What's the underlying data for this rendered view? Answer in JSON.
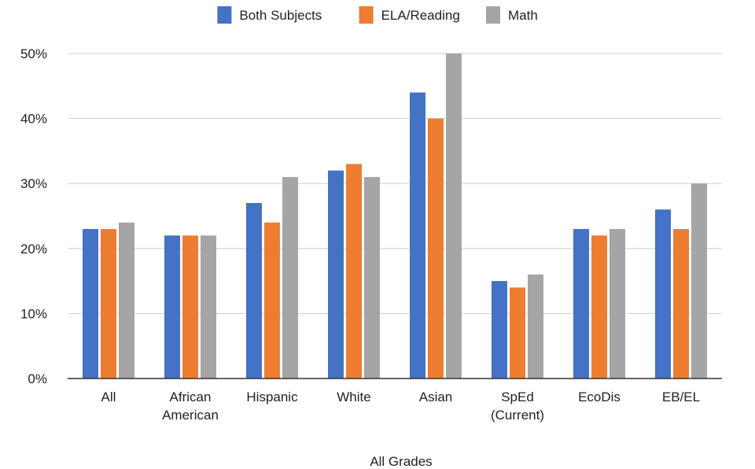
{
  "chart_data": {
    "type": "bar",
    "title": "",
    "xlabel": "All Grades",
    "ylabel": "",
    "ylim": [
      0,
      50
    ],
    "yticks": [
      "0%",
      "10%",
      "20%",
      "30%",
      "40%",
      "50%"
    ],
    "ytick_values": [
      0,
      10,
      20,
      30,
      40,
      50
    ],
    "grid": true,
    "legend_position": "top-center",
    "categories": [
      [
        "All"
      ],
      [
        "African",
        "American"
      ],
      [
        "Hispanic"
      ],
      [
        "White"
      ],
      [
        "Asian"
      ],
      [
        "SpEd",
        "(Current)"
      ],
      [
        "EcoDis"
      ],
      [
        "EB/EL"
      ]
    ],
    "series": [
      {
        "name": "Both Subjects",
        "color": "#4472C4",
        "values": [
          23,
          22,
          27,
          32,
          44,
          15,
          23,
          26
        ]
      },
      {
        "name": "ELA/Reading",
        "color": "#ED7D31",
        "values": [
          23,
          22,
          24,
          33,
          40,
          14,
          22,
          23
        ]
      },
      {
        "name": "Math",
        "color": "#A5A5A5",
        "values": [
          24,
          22,
          31,
          31,
          50,
          16,
          23,
          30
        ]
      }
    ]
  }
}
